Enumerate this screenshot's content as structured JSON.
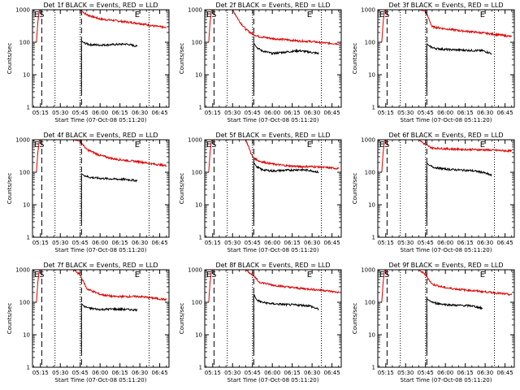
{
  "figure": {
    "background": "#ffffff",
    "colors": {
      "events": "#000000",
      "lld": "#dd0000",
      "axes": "#000000"
    }
  },
  "chart_data": [
    {
      "type": "line",
      "title": "Det 1f BLACK = Events, RED = LLD",
      "xlabel": "Start Time (07-Oct-08 05:11:20)",
      "ylabel": "Counts/sec",
      "xlim": [
        "05:09",
        "06:52"
      ],
      "ylim": [
        1,
        1000
      ],
      "yscale": "log",
      "x_ticks": [
        "05:15",
        "05:30",
        "05:45",
        "06:00",
        "06:15",
        "06:30",
        "06:45"
      ],
      "y_ticks": [
        "1",
        "10",
        "100",
        "1000"
      ],
      "markers": [
        {
          "label": "ES",
          "x": "05:14"
        },
        {
          "label": "E",
          "x": "06:28"
        }
      ],
      "dashed_lines": [
        "05:16",
        "05:46"
      ],
      "dotted_lines": [
        "05:26",
        "05:45",
        "06:37"
      ],
      "series": [
        {
          "name": "LLD",
          "color": "#dd0000",
          "x": [
            "05:12",
            "05:13",
            "05:14",
            "05:15",
            "05:20",
            "05:25",
            "05:30",
            "05:35",
            "05:40",
            "05:45",
            "05:50",
            "06:00",
            "06:10",
            "06:20",
            "06:30",
            "06:40",
            "06:50"
          ],
          "y": [
            100,
            400,
            900,
            1000,
            1000,
            1000,
            1000,
            1000,
            1000,
            1000,
            700,
            520,
            470,
            420,
            380,
            320,
            280
          ]
        },
        {
          "name": "Events",
          "color": "#000000",
          "x": [
            "05:46",
            "05:48",
            "05:52",
            "06:00",
            "06:10",
            "06:20",
            "06:28"
          ],
          "y": [
            110,
            95,
            85,
            82,
            85,
            88,
            75
          ]
        }
      ]
    },
    {
      "type": "line",
      "title": "Det 2f BLACK = Events, RED = LLD",
      "xlabel": "Start Time (07-Oct-08 05:11:20)",
      "ylabel": "Counts/sec",
      "xlim": [
        "05:09",
        "06:52"
      ],
      "ylim": [
        1,
        1000
      ],
      "yscale": "log",
      "x_ticks": [
        "05:15",
        "05:30",
        "05:45",
        "06:00",
        "06:15",
        "06:30",
        "06:45"
      ],
      "y_ticks": [
        "1",
        "10",
        "100",
        "1000"
      ],
      "markers": [
        {
          "label": "ES",
          "x": "05:14"
        },
        {
          "label": "E",
          "x": "06:28"
        }
      ],
      "dashed_lines": [
        "05:16",
        "05:46"
      ],
      "dotted_lines": [
        "05:26",
        "05:45",
        "06:37"
      ],
      "series": [
        {
          "name": "LLD",
          "color": "#dd0000",
          "x": [
            "05:12",
            "05:13",
            "05:14",
            "05:15",
            "05:17",
            "05:20",
            "05:25",
            "05:30",
            "05:35",
            "05:40",
            "05:45",
            "05:50",
            "06:00",
            "06:10",
            "06:20",
            "06:30",
            "06:40",
            "06:50"
          ],
          "y": [
            100,
            400,
            900,
            1000,
            1000,
            1000,
            1000,
            1000,
            450,
            250,
            180,
            150,
            130,
            120,
            110,
            105,
            95,
            90
          ]
        },
        {
          "name": "Events",
          "color": "#000000",
          "x": [
            "05:46",
            "05:48",
            "05:52",
            "06:00",
            "06:10",
            "06:20",
            "06:28",
            "06:35"
          ],
          "y": [
            95,
            70,
            55,
            45,
            50,
            55,
            50,
            45
          ]
        }
      ]
    },
    {
      "type": "line",
      "title": "Det 3f BLACK = Events, RED = LLD",
      "xlabel": "Start Time (07-Oct-08 05:11:20)",
      "ylabel": "Counts/sec",
      "xlim": [
        "05:09",
        "06:52"
      ],
      "ylim": [
        1,
        1000
      ],
      "yscale": "log",
      "x_ticks": [
        "05:15",
        "05:30",
        "05:45",
        "06:00",
        "06:15",
        "06:30",
        "06:45"
      ],
      "y_ticks": [
        "1",
        "10",
        "100",
        "1000"
      ],
      "markers": [
        {
          "label": "ES",
          "x": "05:14"
        },
        {
          "label": "E",
          "x": "06:28"
        }
      ],
      "dashed_lines": [
        "05:16",
        "05:46"
      ],
      "dotted_lines": [
        "05:26",
        "05:45",
        "06:37"
      ],
      "series": [
        {
          "name": "LLD",
          "color": "#dd0000",
          "x": [
            "05:12",
            "05:13",
            "05:14",
            "05:15",
            "05:20",
            "05:25",
            "05:30",
            "05:35",
            "05:40",
            "05:45",
            "05:50",
            "06:00",
            "06:10",
            "06:20",
            "06:30",
            "06:40",
            "06:50"
          ],
          "y": [
            100,
            400,
            900,
            1000,
            1000,
            1000,
            1000,
            1000,
            1000,
            900,
            300,
            260,
            230,
            210,
            190,
            170,
            150
          ]
        },
        {
          "name": "Events",
          "color": "#000000",
          "x": [
            "05:46",
            "05:48",
            "05:52",
            "06:00",
            "06:10",
            "06:20",
            "06:28",
            "06:35"
          ],
          "y": [
            90,
            75,
            65,
            60,
            58,
            56,
            55,
            45
          ]
        }
      ]
    },
    {
      "type": "line",
      "title": "Det 4f BLACK = Events, RED = LLD",
      "xlabel": "Start Time (07-Oct-08 05:11:20)",
      "ylabel": "Counts/sec",
      "xlim": [
        "05:09",
        "06:52"
      ],
      "ylim": [
        1,
        1000
      ],
      "yscale": "log",
      "x_ticks": [
        "05:15",
        "05:30",
        "05:45",
        "06:00",
        "06:15",
        "06:30",
        "06:45"
      ],
      "y_ticks": [
        "1",
        "10",
        "100",
        "1000"
      ],
      "markers": [
        {
          "label": "ES",
          "x": "05:14"
        },
        {
          "label": "E",
          "x": "06:28"
        }
      ],
      "dashed_lines": [
        "05:16",
        "05:46"
      ],
      "dotted_lines": [
        "05:26",
        "05:45",
        "06:37"
      ],
      "series": [
        {
          "name": "LLD",
          "color": "#dd0000",
          "x": [
            "05:12",
            "05:13",
            "05:14",
            "05:15",
            "05:20",
            "05:25",
            "05:30",
            "05:35",
            "05:40",
            "05:45",
            "05:50",
            "06:00",
            "06:10",
            "06:20",
            "06:30",
            "06:40",
            "06:50"
          ],
          "y": [
            100,
            400,
            900,
            1000,
            1000,
            1000,
            1000,
            1000,
            1000,
            900,
            500,
            330,
            260,
            230,
            210,
            180,
            160
          ]
        },
        {
          "name": "Events",
          "color": "#000000",
          "x": [
            "05:46",
            "05:48",
            "05:52",
            "06:00",
            "06:10",
            "06:20",
            "06:28"
          ],
          "y": [
            90,
            80,
            70,
            65,
            62,
            60,
            55
          ]
        }
      ]
    },
    {
      "type": "line",
      "title": "Det 5f BLACK = Events, RED = LLD",
      "xlabel": "Start Time (07-Oct-08 05:11:20)",
      "ylabel": "Counts/sec",
      "xlim": [
        "05:09",
        "06:52"
      ],
      "ylim": [
        1,
        1000
      ],
      "yscale": "log",
      "x_ticks": [
        "05:15",
        "05:30",
        "05:45",
        "06:00",
        "06:15",
        "06:30",
        "06:45"
      ],
      "y_ticks": [
        "1",
        "10",
        "100",
        "1000"
      ],
      "markers": [
        {
          "label": "ES",
          "x": "05:14"
        },
        {
          "label": "E",
          "x": "06:28"
        }
      ],
      "dashed_lines": [
        "05:16",
        "05:46"
      ],
      "dotted_lines": [
        "05:26",
        "05:45",
        "06:37"
      ],
      "series": [
        {
          "name": "LLD",
          "color": "#dd0000",
          "x": [
            "05:12",
            "05:13",
            "05:14",
            "05:15",
            "05:20",
            "05:25",
            "05:30",
            "05:35",
            "05:40",
            "05:45",
            "05:50",
            "06:00",
            "06:10",
            "06:20",
            "06:30",
            "06:40",
            "06:50"
          ],
          "y": [
            100,
            400,
            900,
            1000,
            1000,
            1000,
            1000,
            1000,
            1000,
            300,
            220,
            180,
            160,
            150,
            150,
            140,
            130
          ]
        },
        {
          "name": "Events",
          "color": "#000000",
          "x": [
            "05:46",
            "05:48",
            "05:52",
            "06:00",
            "06:10",
            "06:20",
            "06:28",
            "06:35"
          ],
          "y": [
            200,
            150,
            120,
            110,
            115,
            120,
            115,
            100
          ]
        }
      ]
    },
    {
      "type": "line",
      "title": "Det 6f BLACK = Events, RED = LLD",
      "xlabel": "Start Time (07-Oct-08 05:11:20)",
      "ylabel": "Counts/sec",
      "xlim": [
        "05:09",
        "06:52"
      ],
      "ylim": [
        1,
        1000
      ],
      "yscale": "log",
      "x_ticks": [
        "05:15",
        "05:30",
        "05:45",
        "06:00",
        "06:15",
        "06:30",
        "06:45"
      ],
      "y_ticks": [
        "1",
        "10",
        "100",
        "1000"
      ],
      "markers": [
        {
          "label": "ES",
          "x": "05:14"
        },
        {
          "label": "E",
          "x": "06:28"
        }
      ],
      "dashed_lines": [
        "05:16",
        "05:46"
      ],
      "dotted_lines": [
        "05:26",
        "05:45",
        "06:37"
      ],
      "series": [
        {
          "name": "LLD",
          "color": "#dd0000",
          "x": [
            "05:12",
            "05:13",
            "05:14",
            "05:15",
            "05:20",
            "05:25",
            "05:30",
            "05:35",
            "05:40",
            "05:45",
            "05:50",
            "06:00",
            "06:10",
            "06:20",
            "06:30",
            "06:40",
            "06:50"
          ],
          "y": [
            100,
            400,
            900,
            1000,
            1000,
            1000,
            1000,
            1000,
            1000,
            700,
            560,
            530,
            510,
            500,
            490,
            470,
            450
          ]
        },
        {
          "name": "Events",
          "color": "#000000",
          "x": [
            "05:46",
            "05:48",
            "05:52",
            "06:00",
            "06:10",
            "06:20",
            "06:28",
            "06:35"
          ],
          "y": [
            190,
            160,
            140,
            125,
            118,
            112,
            100,
            80
          ]
        }
      ]
    },
    {
      "type": "line",
      "title": "Det 7f BLACK = Events, RED = LLD",
      "xlabel": "Start Time (07-Oct-08 05:11:20)",
      "ylabel": "Counts/sec",
      "xlim": [
        "05:09",
        "06:52"
      ],
      "ylim": [
        1,
        1000
      ],
      "yscale": "log",
      "x_ticks": [
        "05:15",
        "05:30",
        "05:45",
        "06:00",
        "06:15",
        "06:30",
        "06:45"
      ],
      "y_ticks": [
        "1",
        "10",
        "100",
        "1000"
      ],
      "markers": [
        {
          "label": "ES",
          "x": "05:14"
        },
        {
          "label": "E",
          "x": "06:28"
        }
      ],
      "dashed_lines": [
        "05:16",
        "05:46"
      ],
      "dotted_lines": [
        "05:26",
        "05:45",
        "06:37"
      ],
      "series": [
        {
          "name": "LLD",
          "color": "#dd0000",
          "x": [
            "05:12",
            "05:13",
            "05:14",
            "05:15",
            "05:20",
            "05:25",
            "05:30",
            "05:35",
            "05:40",
            "05:45",
            "05:50",
            "06:00",
            "06:10",
            "06:20",
            "06:30",
            "06:40",
            "06:50"
          ],
          "y": [
            100,
            400,
            900,
            1000,
            1000,
            1000,
            1000,
            1000,
            1000,
            700,
            260,
            175,
            150,
            150,
            150,
            135,
            120
          ]
        },
        {
          "name": "Events",
          "color": "#000000",
          "x": [
            "05:46",
            "05:48",
            "05:52",
            "06:00",
            "06:10",
            "06:20",
            "06:28"
          ],
          "y": [
            90,
            75,
            65,
            60,
            62,
            60,
            58
          ]
        }
      ]
    },
    {
      "type": "line",
      "title": "Det 8f BLACK = Events, RED = LLD",
      "xlabel": "Start Time (07-Oct-08 05:11:20)",
      "ylabel": "Counts/sec",
      "xlim": [
        "05:09",
        "06:52"
      ],
      "ylim": [
        1,
        1000
      ],
      "yscale": "log",
      "x_ticks": [
        "05:15",
        "05:30",
        "05:45",
        "06:00",
        "06:15",
        "06:30",
        "06:45"
      ],
      "y_ticks": [
        "1",
        "10",
        "100",
        "1000"
      ],
      "markers": [
        {
          "label": "ES",
          "x": "05:14"
        },
        {
          "label": "E",
          "x": "06:28"
        }
      ],
      "dashed_lines": [
        "05:16",
        "05:46"
      ],
      "dotted_lines": [
        "05:26",
        "05:45",
        "06:37"
      ],
      "series": [
        {
          "name": "LLD",
          "color": "#dd0000",
          "x": [
            "05:12",
            "05:13",
            "05:14",
            "05:15",
            "05:20",
            "05:25",
            "05:30",
            "05:35",
            "05:40",
            "05:45",
            "05:50",
            "06:00",
            "06:10",
            "06:20",
            "06:30",
            "06:40",
            "06:50"
          ],
          "y": [
            100,
            400,
            900,
            1000,
            1000,
            1000,
            1000,
            1000,
            1000,
            700,
            420,
            340,
            300,
            270,
            250,
            230,
            200
          ]
        },
        {
          "name": "Events",
          "color": "#000000",
          "x": [
            "05:46",
            "05:48",
            "05:52",
            "06:00",
            "06:10",
            "06:20",
            "06:28",
            "06:35"
          ],
          "y": [
            180,
            120,
            100,
            90,
            85,
            82,
            78,
            60
          ]
        }
      ]
    },
    {
      "type": "line",
      "title": "Det 9f BLACK = Events, RED = LLD",
      "xlabel": "Start Time (07-Oct-08 05:11:20)",
      "ylabel": "Counts/sec",
      "xlim": [
        "05:09",
        "06:52"
      ],
      "ylim": [
        1,
        1000
      ],
      "yscale": "log",
      "x_ticks": [
        "05:15",
        "05:30",
        "05:45",
        "06:00",
        "06:15",
        "06:30",
        "06:45"
      ],
      "y_ticks": [
        "1",
        "10",
        "100",
        "1000"
      ],
      "markers": [
        {
          "label": "ES",
          "x": "05:14"
        },
        {
          "label": "E",
          "x": "06:28"
        }
      ],
      "dashed_lines": [
        "05:16",
        "05:46"
      ],
      "dotted_lines": [
        "05:26",
        "05:45",
        "06:37"
      ],
      "series": [
        {
          "name": "LLD",
          "color": "#dd0000",
          "x": [
            "05:12",
            "05:13",
            "05:14",
            "05:15",
            "05:20",
            "05:25",
            "05:30",
            "05:35",
            "05:40",
            "05:45",
            "05:50",
            "06:00",
            "06:10",
            "06:20",
            "06:30",
            "06:40",
            "06:50"
          ],
          "y": [
            100,
            400,
            900,
            1000,
            1000,
            1000,
            1000,
            1000,
            1000,
            700,
            360,
            280,
            250,
            230,
            210,
            190,
            170
          ]
        },
        {
          "name": "Events",
          "color": "#000000",
          "x": [
            "05:46",
            "05:48",
            "05:52",
            "06:00",
            "06:10",
            "06:20",
            "06:28"
          ],
          "y": [
            130,
            110,
            95,
            85,
            80,
            78,
            65
          ]
        }
      ]
    }
  ]
}
